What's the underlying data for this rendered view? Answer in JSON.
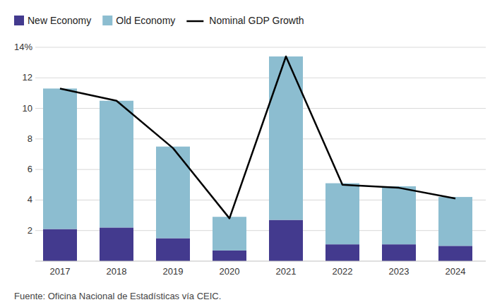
{
  "chart_data": {
    "type": "bar",
    "stacked": true,
    "grid": true,
    "legend": "top",
    "source": "Fuente: Oficina Nacional de Estadísticas vía CEIC.",
    "categories": [
      "2017",
      "2018",
      "2019",
      "2020",
      "2021",
      "2022",
      "2023",
      "2024"
    ],
    "ylim": [
      0,
      14
    ],
    "yticks": [
      2,
      4,
      6,
      8,
      10,
      12,
      {
        "value": 14,
        "label": "14%"
      }
    ],
    "series": [
      {
        "name": "New Economy",
        "type": "bar",
        "color": "#433a8e",
        "values": [
          2.1,
          2.2,
          1.5,
          0.7,
          2.7,
          1.1,
          1.1,
          1.0
        ]
      },
      {
        "name": "Old Economy",
        "type": "bar",
        "color": "#8cbdd0",
        "values": [
          9.2,
          8.3,
          6.0,
          2.2,
          10.7,
          4.0,
          3.8,
          3.2
        ]
      },
      {
        "name": "Nominal GDP Growth",
        "type": "line",
        "color": "#000000",
        "values": [
          11.3,
          10.5,
          7.4,
          2.8,
          13.4,
          5.0,
          4.8,
          4.1
        ]
      }
    ]
  }
}
